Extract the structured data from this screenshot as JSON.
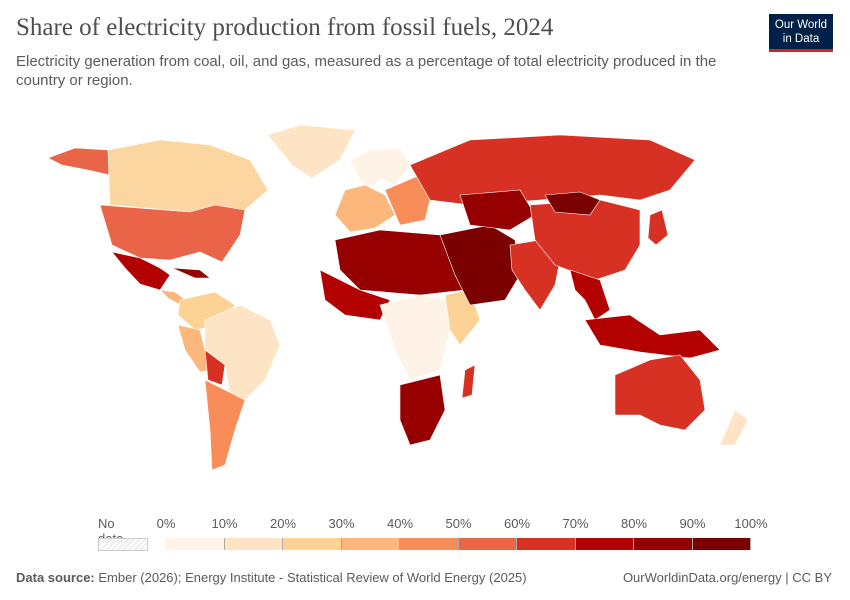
{
  "header": {
    "title": "Share of electricity production from fossil fuels, 2024",
    "subtitle": "Electricity generation from coal, oil, and gas, measured as a percentage of total electricity produced in the country or region.",
    "logo_text": "Our World in Data"
  },
  "legend": {
    "no_data_label": "No data",
    "ticks": [
      "0%",
      "10%",
      "20%",
      "30%",
      "40%",
      "50%",
      "60%",
      "70%",
      "80%",
      "90%",
      "100%"
    ],
    "colors": [
      "#fef3e6",
      "#fde4c4",
      "#fcd295",
      "#fbb77c",
      "#f98d59",
      "#ea6447",
      "#d63123",
      "#b30000",
      "#960000",
      "#7b0000"
    ]
  },
  "map_regions": [
    {
      "name": "alaska",
      "color": "#ea6447"
    },
    {
      "name": "canada",
      "color": "#fcd6a0"
    },
    {
      "name": "greenland",
      "color": "#fde4c4"
    },
    {
      "name": "usa",
      "color": "#ea6447"
    },
    {
      "name": "mexico",
      "color": "#b30000"
    },
    {
      "name": "central-america",
      "color": "#fbb77c"
    },
    {
      "name": "caribbean",
      "color": "#960000"
    },
    {
      "name": "colombia-venezuela",
      "color": "#fcd295"
    },
    {
      "name": "brazil",
      "color": "#fde4c4"
    },
    {
      "name": "peru",
      "color": "#fbb77c"
    },
    {
      "name": "bolivia",
      "color": "#d63123"
    },
    {
      "name": "argentina-chile",
      "color": "#f98d59"
    },
    {
      "name": "iceland-nordics",
      "color": "#fef3e6"
    },
    {
      "name": "western-europe",
      "color": "#fbb77c"
    },
    {
      "name": "eastern-europe",
      "color": "#f98d59"
    },
    {
      "name": "russia",
      "color": "#d63123"
    },
    {
      "name": "north-africa",
      "color": "#960000"
    },
    {
      "name": "west-africa",
      "color": "#b30000"
    },
    {
      "name": "central-africa",
      "color": "#fef3e6"
    },
    {
      "name": "east-africa",
      "color": "#fcd295"
    },
    {
      "name": "southern-africa",
      "color": "#960000"
    },
    {
      "name": "madagascar",
      "color": "#d63123"
    },
    {
      "name": "middle-east",
      "color": "#7b0000"
    },
    {
      "name": "central-asia",
      "color": "#960000"
    },
    {
      "name": "india",
      "color": "#d63123"
    },
    {
      "name": "china",
      "color": "#d63123"
    },
    {
      "name": "mongolia",
      "color": "#7b0000"
    },
    {
      "name": "japan",
      "color": "#d63123"
    },
    {
      "name": "southeast-asia",
      "color": "#b30000"
    },
    {
      "name": "indonesia",
      "color": "#b30000"
    },
    {
      "name": "australia",
      "color": "#d63123"
    },
    {
      "name": "new-zealand",
      "color": "#fde4c4"
    }
  ],
  "footer": {
    "source_label": "Data source:",
    "source_text": "Ember (2026); Energy Institute - Statistical Review of World Energy (2025)",
    "link_text": "OurWorldinData.org/energy | CC BY"
  }
}
